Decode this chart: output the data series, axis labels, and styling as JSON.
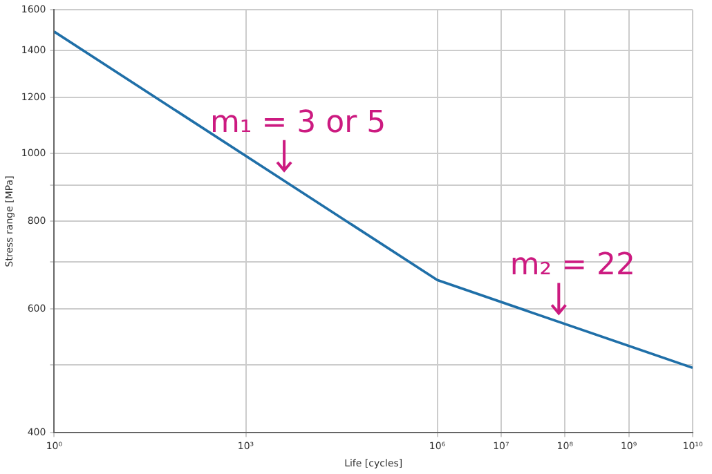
{
  "chart_data": {
    "type": "line",
    "xlabel": "Life [cycles]",
    "ylabel": "Stress range [MPa]",
    "x": [
      1,
      1000000,
      10000000000
    ],
    "series": [
      {
        "color": "#1f6fa8",
        "values": [
          1490,
          660,
          495
        ]
      }
    ],
    "log": "xy",
    "xlim": [
      1,
      10000000000
    ],
    "ylim": [
      400,
      1600
    ],
    "xticks": [
      {
        "value": 1,
        "label": "10⁰"
      },
      {
        "value": 1000,
        "label": "10³"
      },
      {
        "value": 1000000,
        "label": "10⁶"
      },
      {
        "value": 10000000,
        "label": "10⁷"
      },
      {
        "value": 100000000,
        "label": "10⁸"
      },
      {
        "value": 1000000000,
        "label": "10⁹"
      },
      {
        "value": 10000000000,
        "label": "10¹⁰"
      }
    ],
    "yticks": [
      400,
      {
        "value": 500,
        "label": null
      },
      600,
      {
        "value": 700,
        "label": null
      },
      800,
      {
        "value": 900,
        "label": null
      },
      1000,
      1200,
      1400,
      1600
    ],
    "grid": true,
    "marker": "none",
    "line_style": "solid",
    "legend": false,
    "annotations": [
      {
        "text": "m₁ = 3 or 5",
        "x": 4000,
        "y": 920
      },
      {
        "text": "m₂ = 22",
        "x": 80000000,
        "y": 576
      }
    ]
  }
}
